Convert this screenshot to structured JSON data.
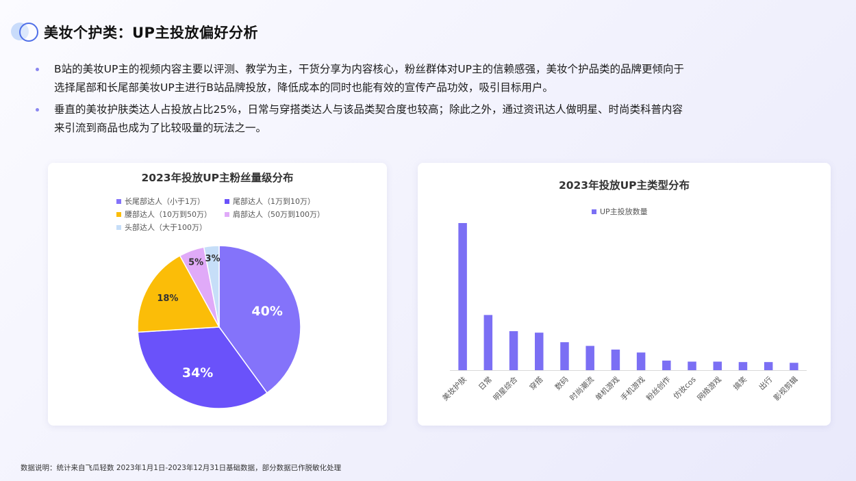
{
  "header": {
    "title": "美妆个护类：UP主投放偏好分析"
  },
  "bullets": [
    {
      "line1": "B站的美妆UP主的视频内容主要以评测、教学为主，干货分享为内容核心，粉丝群体对UP主的信赖感强，美妆个护品类的品牌更倾向于",
      "line2": "选择尾部和长尾部美妆UP主进行B站品牌投放，降低成本的同时也能有效的宣传产品功效，吸引目标用户。"
    },
    {
      "line1": "垂直的美妆护肤类达人占投放占比25%，日常与穿搭类达人与该品类契合度也较高；除此之外，通过资讯达人做明星、时尚类科普内容",
      "line2": "来引流到商品也成为了比较吸量的玩法之一。"
    }
  ],
  "chart_data": [
    {
      "type": "pie",
      "title": "2023年投放UP主粉丝量级分布",
      "legend": "top",
      "slices": [
        {
          "name": "长尾部达人（小于1万）",
          "value": 40,
          "label": "40%",
          "color": "#8473fa"
        },
        {
          "name": "尾部达人（1万到10万）",
          "value": 34,
          "label": "34%",
          "color": "#6a52fa"
        },
        {
          "name": "腰部达人（10万到50万）",
          "value": 18,
          "label": "18%",
          "color": "#fbbd08"
        },
        {
          "name": "肩部达人（50万到100万）",
          "value": 5,
          "label": "5%",
          "color": "#e0aaf8"
        },
        {
          "name": "头部达人（大于100万）",
          "value": 3,
          "label": "3%",
          "color": "#c6def8"
        }
      ]
    },
    {
      "type": "bar",
      "title": "2023年投放UP主类型分布",
      "legend": "top",
      "series": [
        {
          "name": "UP主投放数量",
          "color": "#7b6ff4"
        }
      ],
      "categories": [
        "美妆护肤",
        "日常",
        "明星综合",
        "穿搭",
        "数码",
        "时尚潮流",
        "单机游戏",
        "手机游戏",
        "粉丝创作",
        "仿妆cos",
        "网络游戏",
        "搞笑",
        "出行",
        "影视剪辑"
      ],
      "values": [
        100,
        37.5,
        26.5,
        25.5,
        19,
        16.5,
        14,
        12,
        6.5,
        5.8,
        5.8,
        5.5,
        5.5,
        5
      ],
      "ylim": [
        0,
        100
      ],
      "grid": false
    }
  ],
  "footnote": "数据说明：统计来自飞瓜轻数 2023年1月1日-2023年12月31日基础数据，部分数据已作脱敏化处理"
}
